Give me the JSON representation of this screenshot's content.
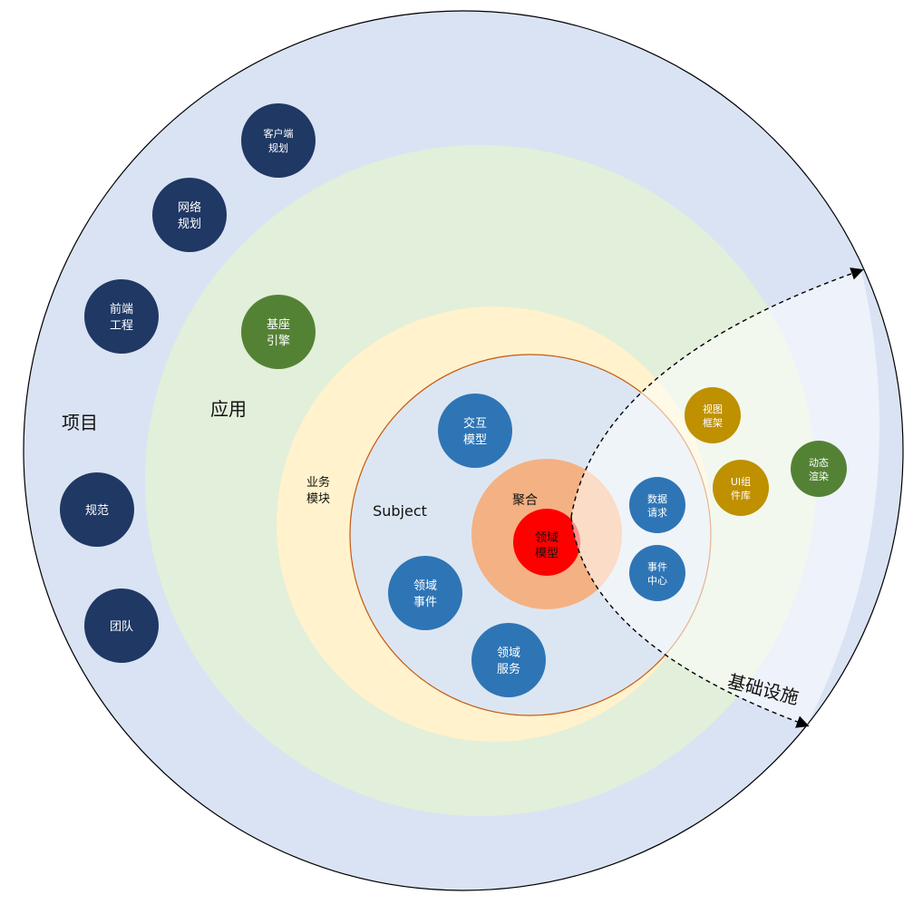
{
  "colors": {
    "project_ring": "#dae3f3",
    "app_ring": "#e2efda",
    "module_ring": "#fff2cc",
    "subject_fill": "#dce6f2",
    "subject_border": "#c55a11",
    "aggregate": "#f4b183",
    "domain_model": "#ff0000",
    "navy": "#1f3864",
    "green": "#548235",
    "blue": "#2e75b6",
    "gold": "#bf9000",
    "infra_overlay": "#ffffff"
  },
  "rings": {
    "project_label": "项目",
    "app_label": "应用",
    "module_label": [
      "业务",
      "模块"
    ],
    "subject_label": "Subject",
    "aggregate_label": "聚合",
    "domain_model_label": [
      "领域",
      "模型"
    ],
    "infra_label": "基础设施"
  },
  "project_nodes": [
    {
      "lines": [
        "客户端",
        "规划"
      ],
      "color": "navy",
      "small": true
    },
    {
      "lines": [
        "网络",
        "规划"
      ],
      "color": "navy"
    },
    {
      "lines": [
        "前端",
        "工程"
      ],
      "color": "navy"
    },
    {
      "lines": [
        "规范"
      ],
      "color": "navy"
    },
    {
      "lines": [
        "团队"
      ],
      "color": "navy"
    }
  ],
  "app_nodes": [
    {
      "lines": [
        "基座",
        "引擎"
      ],
      "color": "green"
    }
  ],
  "subject_nodes": [
    {
      "lines": [
        "交互",
        "模型"
      ],
      "color": "blue"
    },
    {
      "lines": [
        "领域",
        "事件"
      ],
      "color": "blue"
    },
    {
      "lines": [
        "领域",
        "服务"
      ],
      "color": "blue"
    }
  ],
  "infra_nodes": [
    {
      "lines": [
        "数据",
        "请求"
      ],
      "color": "blue"
    },
    {
      "lines": [
        "事件",
        "中心"
      ],
      "color": "blue"
    },
    {
      "lines": [
        "视图",
        "框架"
      ],
      "color": "gold"
    },
    {
      "lines": [
        "UI组",
        "件库"
      ],
      "color": "gold"
    },
    {
      "lines": [
        "动态",
        "渲染"
      ],
      "color": "green"
    }
  ]
}
